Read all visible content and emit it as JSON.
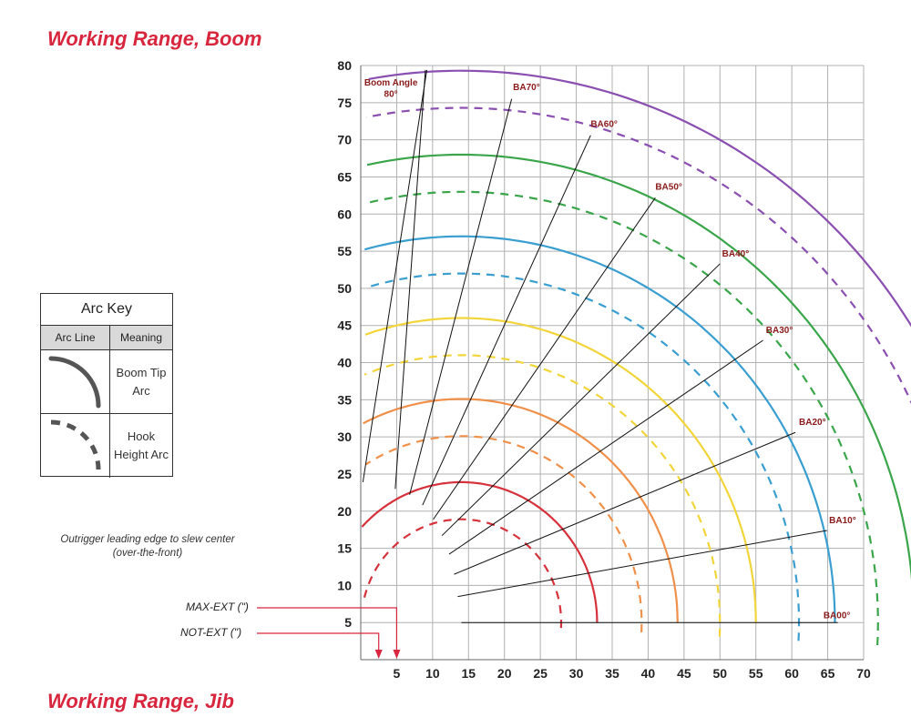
{
  "page": {
    "title": "Working Range, Boom",
    "footer_title": "Working Range, Jib"
  },
  "arc_key": {
    "title": "Arc Key",
    "col_arc_line": "Arc Line",
    "col_meaning": "Meaning",
    "rows": [
      {
        "style": "solid",
        "meaning": "Boom Tip Arc"
      },
      {
        "style": "dashed",
        "meaning": "Hook Height Arc"
      }
    ],
    "line_color": "#555555"
  },
  "note": {
    "line1": "Outrigger leading edge to slew center",
    "line2": "(over-the-front)"
  },
  "outrigger_labels": {
    "max_ext": "MAX-EXT (\")",
    "not_ext": "NOT-EXT (\")",
    "arrow_color": "#d7263d",
    "max_ext_x": 5,
    "not_ext_x": 2.5
  },
  "chart_data": {
    "type": "line",
    "title": "",
    "xlabel": "",
    "ylabel": "",
    "xlim": [
      0,
      70
    ],
    "ylim": [
      0,
      80
    ],
    "x_ticks": [
      5,
      10,
      15,
      20,
      25,
      30,
      35,
      40,
      45,
      50,
      55,
      60,
      65,
      70
    ],
    "y_ticks": [
      5,
      10,
      15,
      20,
      25,
      30,
      35,
      40,
      45,
      50,
      55,
      60,
      65,
      70,
      75,
      80
    ],
    "grid": true,
    "pivot": [
      14,
      5
    ],
    "boom_tip_arcs": [
      {
        "color": "#d7323c",
        "radius": 18.9
      },
      {
        "color": "#f0904a",
        "radius": 30.1
      },
      {
        "color": "#f2d53a",
        "radius": 41.0
      },
      {
        "color": "#3a9fd0",
        "radius": 52.0
      },
      {
        "color": "#3aa54a",
        "radius": 63.0
      },
      {
        "color": "#8a4fb0",
        "radius": 74.3
      }
    ],
    "hook_height_arcs": [
      {
        "color": "#d7323c",
        "radius": 13.9
      },
      {
        "color": "#f0904a",
        "radius": 25.1
      },
      {
        "color": "#f2d53a",
        "radius": 36.0
      },
      {
        "color": "#3a9fd0",
        "radius": 47.0
      },
      {
        "color": "#3aa54a",
        "radius": 58.0
      },
      {
        "color": "#8a4fb0",
        "radius": 69.3
      }
    ],
    "boom_angle_lines": [
      {
        "angle": 0,
        "end": [
          66.4,
          5.0
        ],
        "label": "BA00°"
      },
      {
        "angle": 10,
        "end": [
          64.9,
          17.4
        ],
        "label": "BA10°"
      },
      {
        "angle": 20,
        "end": [
          60.5,
          30.6
        ],
        "label": "BA20°"
      },
      {
        "angle": 30,
        "end": [
          56.0,
          43.0
        ],
        "label": "BA30°"
      },
      {
        "angle": 40,
        "end": [
          50.0,
          53.3
        ],
        "label": "BA40°"
      },
      {
        "angle": 50,
        "end": [
          41.0,
          62.2
        ],
        "label": "BA50°"
      },
      {
        "angle": 60,
        "end": [
          32.0,
          70.6
        ],
        "label": "BA60°"
      },
      {
        "angle": 70,
        "end": [
          21.0,
          75.5
        ],
        "label": "BA70°"
      },
      {
        "angle": 80,
        "end": [
          9.0,
          79.4
        ],
        "label": "Boom Angle 80°"
      }
    ],
    "boom_angle_line_color": "#111111",
    "label_color": "#8b1a1a"
  }
}
